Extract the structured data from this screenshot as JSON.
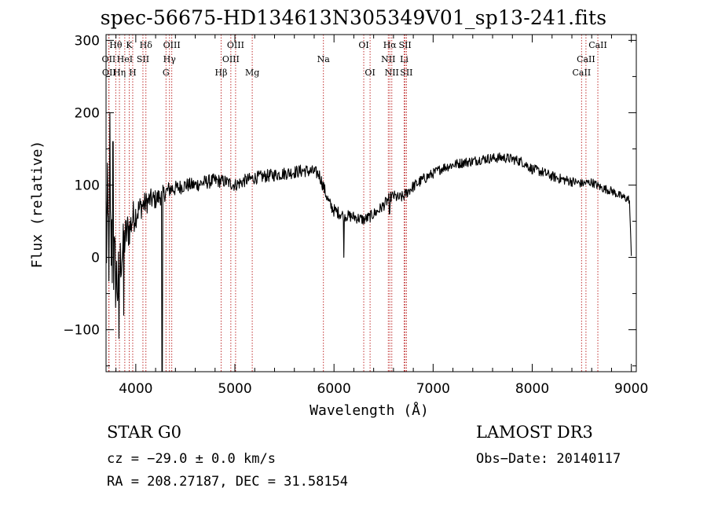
{
  "chart_data": {
    "type": "line",
    "title": "spec-56675-HD134613N305349V01_sp13-241.fits",
    "xlabel": "Wavelength (Å)",
    "ylabel": "Flux (relative)",
    "xlim": [
      3700,
      9050
    ],
    "ylim": [
      -158,
      308
    ],
    "xticks": [
      4000,
      5000,
      6000,
      7000,
      8000,
      9000
    ],
    "yticks": [
      -100,
      0,
      100,
      200,
      300
    ],
    "ytick_labels": [
      "−100",
      "0",
      "100",
      "200",
      "300"
    ],
    "grid": false,
    "series": [
      {
        "name": "spectrum",
        "x": [
          3700,
          3730,
          3760,
          3790,
          3820,
          3850,
          3880,
          3910,
          3940,
          3970,
          4000,
          4050,
          4100,
          4150,
          4200,
          4250,
          4300,
          4350,
          4400,
          4500,
          4600,
          4700,
          4800,
          4900,
          5000,
          5100,
          5200,
          5300,
          5400,
          5500,
          5600,
          5700,
          5800,
          5850,
          5900,
          5950,
          6000,
          6100,
          6200,
          6300,
          6350,
          6400,
          6450,
          6500,
          6560,
          6600,
          6650,
          6700,
          6750,
          6800,
          6900,
          7000,
          7100,
          7200,
          7300,
          7400,
          7500,
          7600,
          7700,
          7800,
          7900,
          8000,
          8100,
          8200,
          8300,
          8400,
          8500,
          8600,
          8700,
          8800,
          8900,
          8980,
          9000
        ],
        "y": [
          40,
          20,
          10,
          -20,
          -40,
          0,
          20,
          35,
          40,
          55,
          60,
          70,
          75,
          80,
          80,
          85,
          90,
          95,
          95,
          100,
          100,
          104,
          106,
          105,
          100,
          106,
          110,
          112,
          114,
          116,
          118,
          120,
          118,
          115,
          95,
          75,
          65,
          58,
          56,
          52,
          55,
          60,
          65,
          72,
          82,
          85,
          82,
          84,
          92,
          98,
          108,
          116,
          124,
          128,
          131,
          133,
          136,
          137,
          138,
          136,
          132,
          122,
          118,
          112,
          108,
          105,
          102,
          104,
          96,
          92,
          84,
          80,
          2
        ],
        "noise_amplitude": [
          120,
          80,
          70,
          60,
          50,
          40,
          30,
          30,
          25,
          25,
          20,
          18,
          16,
          15,
          14,
          13,
          12,
          12,
          11,
          10,
          10,
          10,
          10,
          9,
          9,
          9,
          9,
          9,
          9,
          9,
          9,
          9,
          9,
          9,
          9,
          9,
          9,
          8,
          8,
          8,
          8,
          8,
          8,
          8,
          8,
          8,
          8,
          8,
          8,
          8,
          8,
          7,
          7,
          7,
          7,
          7,
          7,
          7,
          7,
          7,
          7,
          7,
          7,
          7,
          7,
          7,
          6,
          6,
          6,
          6,
          6,
          6,
          0
        ]
      }
    ],
    "spikes": [
      {
        "x": 3830,
        "y": -112
      },
      {
        "x": 3880,
        "y": -80
      },
      {
        "x": 3740,
        "y": 200
      },
      {
        "x": 3770,
        "y": 160
      },
      {
        "x": 4262,
        "y": -160
      },
      {
        "x": 4270,
        "y": -160
      },
      {
        "x": 6100,
        "y": 0
      },
      {
        "x": 6560,
        "y": 60
      }
    ],
    "spectral_lines": [
      {
        "label": "Hθ",
        "x": 3798,
        "row": 0
      },
      {
        "label": "K",
        "x": 3934,
        "row": 0
      },
      {
        "label": "Hδ",
        "x": 4102,
        "row": 0
      },
      {
        "label": "OIII",
        "x": 4363,
        "row": 0
      },
      {
        "label": "OIII",
        "x": 5007,
        "row": 0
      },
      {
        "label": "OI",
        "x": 6300,
        "row": 0
      },
      {
        "label": "Hα",
        "x": 6563,
        "row": 0
      },
      {
        "label": "SII",
        "x": 6717,
        "row": 0
      },
      {
        "label": "CaII",
        "x": 8662,
        "row": 0
      },
      {
        "label": "OII",
        "x": 3727,
        "row": 1
      },
      {
        "label": "HeI",
        "x": 3889,
        "row": 1
      },
      {
        "label": "SII",
        "x": 4072,
        "row": 1
      },
      {
        "label": "Hγ",
        "x": 4340,
        "row": 1
      },
      {
        "label": "OIII",
        "x": 4959,
        "row": 1
      },
      {
        "label": "Na",
        "x": 5893,
        "row": 1
      },
      {
        "label": "NII",
        "x": 6548,
        "row": 1
      },
      {
        "label": "Li",
        "x": 6708,
        "row": 1
      },
      {
        "label": "CaII",
        "x": 8542,
        "row": 1
      },
      {
        "label": "OII",
        "x": 3730,
        "row": 2
      },
      {
        "label": "Hη",
        "x": 3835,
        "row": 2
      },
      {
        "label": "H",
        "x": 3969,
        "row": 2
      },
      {
        "label": "G",
        "x": 4305,
        "row": 2
      },
      {
        "label": "Hβ",
        "x": 4861,
        "row": 2
      },
      {
        "label": "Mg",
        "x": 5175,
        "row": 2
      },
      {
        "label": "OI",
        "x": 6364,
        "row": 2
      },
      {
        "label": "NII",
        "x": 6583,
        "row": 2
      },
      {
        "label": "SII",
        "x": 6731,
        "row": 2
      },
      {
        "label": "CaII",
        "x": 8498,
        "row": 2
      }
    ]
  },
  "info": {
    "star_class": "STAR    G0",
    "survey": "LAMOST DR3",
    "cz": "cz = −29.0 ± 0.0 km/s",
    "obs_date": "Obs−Date: 20140117",
    "ra_dec": "RA = 208.27187, DEC =  31.58154"
  },
  "colors": {
    "line_marker": "#c03030",
    "spectrum": "#000000",
    "axes": "#000000",
    "background": "#ffffff"
  }
}
